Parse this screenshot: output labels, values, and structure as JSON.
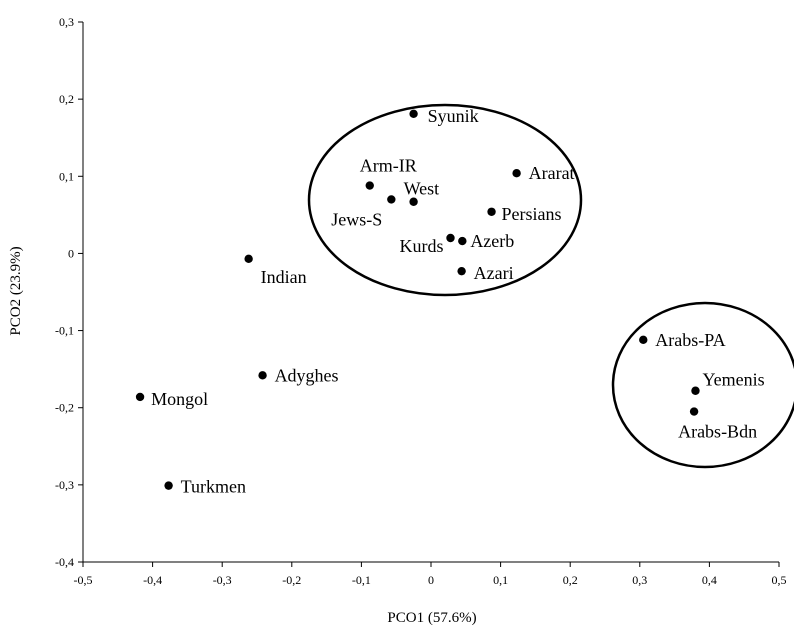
{
  "chart_data": {
    "type": "scatter",
    "title": "",
    "xlabel": "PCO1 (57.6%)",
    "ylabel": "PCO2 (23.9%)",
    "xlim": [
      -0.5,
      0.5
    ],
    "ylim": [
      -0.4,
      0.3
    ],
    "x_ticks": [
      "-0,5",
      "-0,4",
      "-0,3",
      "-0,2",
      "-0,1",
      "0",
      "0,1",
      "0,2",
      "0,3",
      "0,4",
      "0,5"
    ],
    "y_ticks": [
      "-0,4",
      "-0,3",
      "-0,2",
      "-0,1",
      "0",
      "0,1",
      "0,2",
      "0,3"
    ],
    "grid": false,
    "points": [
      {
        "label": "Syunik",
        "x": -0.025,
        "y": 0.181
      },
      {
        "label": "Ararat",
        "x": 0.123,
        "y": 0.104
      },
      {
        "label": "Arm-IR",
        "x": -0.088,
        "y": 0.088
      },
      {
        "label": "West",
        "x": -0.025,
        "y": 0.067
      },
      {
        "label": "Jews-S",
        "x": -0.057,
        "y": 0.07
      },
      {
        "label": "Persians",
        "x": 0.087,
        "y": 0.054
      },
      {
        "label": "Kurds",
        "x": 0.028,
        "y": 0.02
      },
      {
        "label": "Azerb",
        "x": 0.045,
        "y": 0.016
      },
      {
        "label": "Azari",
        "x": 0.044,
        "y": -0.023
      },
      {
        "label": "Indian",
        "x": -0.262,
        "y": -0.007
      },
      {
        "label": "Arabs-PA",
        "x": 0.305,
        "y": -0.112
      },
      {
        "label": "Adyghes",
        "x": -0.242,
        "y": -0.158
      },
      {
        "label": "Yemenis",
        "x": 0.38,
        "y": -0.178
      },
      {
        "label": "Mongol",
        "x": -0.418,
        "y": -0.186
      },
      {
        "label": "Arabs-Bdn",
        "x": 0.378,
        "y": -0.205
      },
      {
        "label": "Turkmen",
        "x": -0.377,
        "y": -0.301
      }
    ],
    "clusters": [
      {
        "name": "cluster-1",
        "members": [
          "Syunik",
          "Ararat",
          "Arm-IR",
          "West",
          "Jews-S",
          "Persians",
          "Kurds",
          "Azerb",
          "Azari"
        ]
      },
      {
        "name": "cluster-2",
        "members": [
          "Arabs-PA",
          "Yemenis",
          "Arabs-Bdn"
        ]
      }
    ]
  }
}
